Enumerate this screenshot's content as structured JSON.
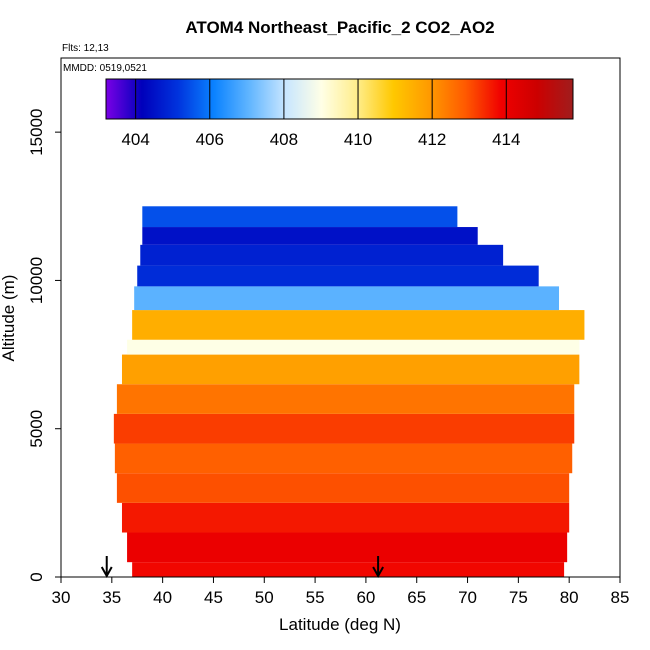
{
  "chart_data": {
    "type": "heatmap",
    "title": "ATOM4 Northeast_Pacific_2 CO2_AO2",
    "flights": "Flts: 12,13",
    "dates": "MMDD: 0519,0521",
    "xlabel": "Latitude (deg N)",
    "ylabel": "Altitude (m)",
    "xlim": [
      30,
      85
    ],
    "ylim": [
      0,
      17500
    ],
    "xticks": [
      30,
      35,
      40,
      45,
      50,
      55,
      60,
      65,
      70,
      75,
      80,
      85
    ],
    "yticks": [
      0,
      5000,
      10000,
      15000
    ],
    "colorbar": {
      "range": [
        403.2,
        415.8
      ],
      "ticks": [
        404,
        406,
        408,
        410,
        412,
        414
      ],
      "colors": [
        "#7a00e6",
        "#0000bb",
        "#0033dd",
        "#0a82ff",
        "#62b6ff",
        "#c8e6ff",
        "#ffffe6",
        "#ffed8a",
        "#ffc800",
        "#ff9a00",
        "#ff5a00",
        "#f00000",
        "#cc0000",
        "#a01d1d"
      ]
    },
    "grid": false,
    "legend": "colorbar top",
    "layers": [
      {
        "alt": [
          0,
          500
        ],
        "lat": [
          37,
          79.5
        ],
        "value": 413.8
      },
      {
        "alt": [
          500,
          1500
        ],
        "lat": [
          36.5,
          79.8
        ],
        "value": 414.0
      },
      {
        "alt": [
          1500,
          2500
        ],
        "lat": [
          36,
          80
        ],
        "value": 413.6
      },
      {
        "alt": [
          2500,
          3500
        ],
        "lat": [
          35.5,
          80
        ],
        "value": 413.0
      },
      {
        "alt": [
          3500,
          4500
        ],
        "lat": [
          35.3,
          80.3
        ],
        "value": 412.8
      },
      {
        "alt": [
          4500,
          5500
        ],
        "lat": [
          35.2,
          80.5
        ],
        "value": 413.2
      },
      {
        "alt": [
          5500,
          6500
        ],
        "lat": [
          35.5,
          80.5
        ],
        "value": 412.5
      },
      {
        "alt": [
          6500,
          7500
        ],
        "lat": [
          36,
          81
        ],
        "value": 411.8
      },
      {
        "alt": [
          7500,
          8000
        ],
        "lat": [
          36.5,
          81
        ],
        "value": 409.0
      },
      {
        "alt": [
          8000,
          9000
        ],
        "lat": [
          37,
          81.5
        ],
        "value": 411.5
      },
      {
        "alt": [
          9000,
          9800
        ],
        "lat": [
          37.2,
          79
        ],
        "value": 407.0
      },
      {
        "alt": [
          9800,
          10500
        ],
        "lat": [
          37.5,
          77
        ],
        "value": 405.0
      },
      {
        "alt": [
          10500,
          11200
        ],
        "lat": [
          37.8,
          73.5
        ],
        "value": 404.8
      },
      {
        "alt": [
          11200,
          11800
        ],
        "lat": [
          38,
          71
        ],
        "value": 404.5
      },
      {
        "alt": [
          11800,
          12500
        ],
        "lat": [
          38,
          69
        ],
        "value": 405.5
      }
    ],
    "markers": [
      {
        "x": 34.5,
        "label": "↓"
      },
      {
        "x": 61.2,
        "label": "↓"
      }
    ]
  }
}
